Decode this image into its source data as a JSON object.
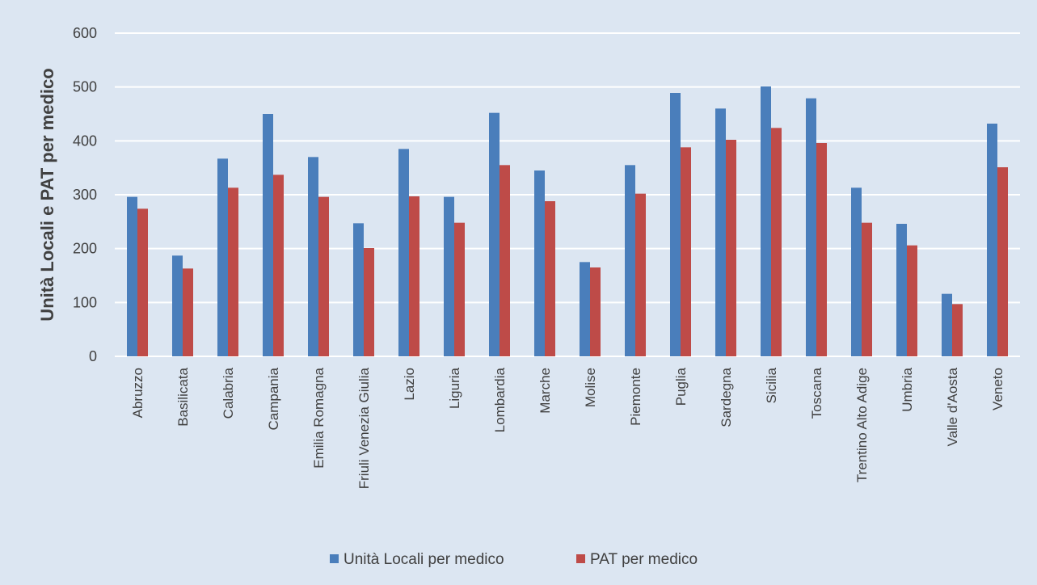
{
  "chart_data": {
    "type": "bar",
    "title": "",
    "xlabel": "",
    "ylabel": "Unità Locali e PAT per medico",
    "ylim": [
      0,
      600
    ],
    "yticks": [
      0,
      100,
      200,
      300,
      400,
      500,
      600
    ],
    "grid": true,
    "legend_position": "bottom",
    "background": "#dce6f2",
    "categories": [
      "Abruzzo",
      "Basilicata",
      "Calabria",
      "Campania",
      "Emilia Romagna",
      "Friuli Venezia Giulia",
      "Lazio",
      "Liguria",
      "Lombardia",
      "Marche",
      "Molise",
      "Piemonte",
      "Puglia",
      "Sardegna",
      "Sicilia",
      "Toscana",
      "Trentino Alto Adige",
      "Umbria",
      "Valle d'Aosta",
      "Veneto"
    ],
    "series": [
      {
        "name": "Unità Locali per medico",
        "color": "#4a7ebb",
        "values": [
          296,
          187,
          367,
          450,
          370,
          247,
          385,
          296,
          452,
          345,
          175,
          355,
          489,
          460,
          501,
          479,
          313,
          246,
          116,
          432
        ]
      },
      {
        "name": "PAT per medico",
        "color": "#be4b48",
        "values": [
          274,
          163,
          313,
          337,
          296,
          201,
          297,
          248,
          355,
          288,
          165,
          302,
          388,
          402,
          424,
          396,
          248,
          206,
          97,
          351
        ]
      }
    ]
  }
}
